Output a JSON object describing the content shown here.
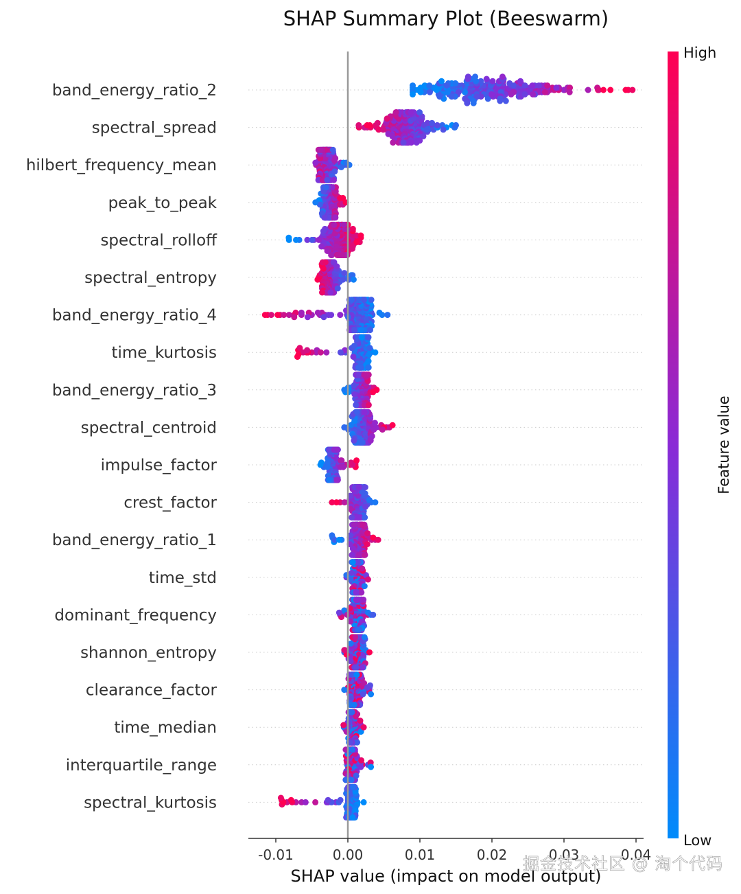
{
  "chart_data": {
    "type": "scatter",
    "subtype": "shap-beeswarm",
    "title": "SHAP Summary Plot (Beeswarm)",
    "xlabel": "SHAP value (impact on model output)",
    "ylabel": "",
    "xlim": [
      -0.014,
      0.042
    ],
    "xticks": [
      -0.01,
      0.0,
      0.01,
      0.02,
      0.03,
      0.04
    ],
    "xtick_labels": [
      "-0.01",
      "0.00",
      "0.01",
      "0.02",
      "0.03",
      "0.04"
    ],
    "zero_line": 0.0,
    "grid": false,
    "colorbar": {
      "label": "Feature value",
      "high_label": "High",
      "low_label": "Low",
      "high_color": "#ff0052",
      "mid_color": "#8a2ad6",
      "low_color": "#008bfb",
      "placement": "right"
    },
    "features": [
      {
        "name": "band_energy_ratio_2",
        "range": [
          0.009,
          0.0395
        ],
        "center": 0.019,
        "spread": 0.008,
        "trend": "low-left-high-right",
        "points": 260
      },
      {
        "name": "spectral_spread",
        "range": [
          0.0015,
          0.015
        ],
        "center": 0.008,
        "spread": 0.003,
        "trend": "high-left-low-right",
        "points": 200
      },
      {
        "name": "hilbert_frequency_mean",
        "range": [
          -0.0045,
          0.0002
        ],
        "center": -0.003,
        "spread": 0.001,
        "trend": "mixed-high-left",
        "points": 150
      },
      {
        "name": "peak_to_peak",
        "range": [
          -0.0045,
          -0.0003
        ],
        "center": -0.0025,
        "spread": 0.0009,
        "trend": "low-left-high-right",
        "points": 140
      },
      {
        "name": "spectral_rolloff",
        "range": [
          -0.0082,
          0.0018
        ],
        "center": -0.001,
        "spread": 0.002,
        "trend": "low-left-high-right",
        "points": 190
      },
      {
        "name": "spectral_entropy",
        "range": [
          -0.0042,
          0.0008
        ],
        "center": -0.0025,
        "spread": 0.001,
        "trend": "high-left-low-right",
        "points": 140
      },
      {
        "name": "band_energy_ratio_4",
        "range": [
          -0.0115,
          0.0055
        ],
        "center": 0.0015,
        "spread": 0.0015,
        "trend": "high-left-low-right",
        "points": 200
      },
      {
        "name": "time_kurtosis",
        "range": [
          -0.007,
          0.0038
        ],
        "center": 0.002,
        "spread": 0.0009,
        "trend": "high-left-low-right",
        "points": 150
      },
      {
        "name": "band_energy_ratio_3",
        "range": [
          -0.0005,
          0.004
        ],
        "center": 0.002,
        "spread": 0.0009,
        "trend": "low-left-high-right",
        "points": 150
      },
      {
        "name": "spectral_centroid",
        "range": [
          -0.0005,
          0.0062
        ],
        "center": 0.002,
        "spread": 0.0012,
        "trend": "low-left-high-right",
        "points": 170
      },
      {
        "name": "impulse_factor",
        "range": [
          -0.0038,
          0.0012
        ],
        "center": -0.002,
        "spread": 0.0008,
        "trend": "low-left-high-right",
        "points": 140
      },
      {
        "name": "crest_factor",
        "range": [
          -0.0022,
          0.0038
        ],
        "center": 0.0015,
        "spread": 0.0009,
        "trend": "high-left-low-right",
        "points": 150
      },
      {
        "name": "band_energy_ratio_1",
        "range": [
          -0.0022,
          0.0042
        ],
        "center": 0.0015,
        "spread": 0.0009,
        "trend": "low-left-high-right",
        "points": 160
      },
      {
        "name": "time_std",
        "range": [
          -0.0002,
          0.0028
        ],
        "center": 0.0013,
        "spread": 0.0007,
        "trend": "mixed",
        "points": 130
      },
      {
        "name": "dominant_frequency",
        "range": [
          -0.0012,
          0.0035
        ],
        "center": 0.0013,
        "spread": 0.0008,
        "trend": "mixed",
        "points": 150
      },
      {
        "name": "shannon_entropy",
        "range": [
          -0.0005,
          0.003
        ],
        "center": 0.0013,
        "spread": 0.0008,
        "trend": "mixed",
        "points": 150
      },
      {
        "name": "clearance_factor",
        "range": [
          -0.0005,
          0.0032
        ],
        "center": 0.001,
        "spread": 0.0007,
        "trend": "mixed",
        "points": 140
      },
      {
        "name": "time_median",
        "range": [
          -0.0006,
          0.0022
        ],
        "center": 0.0007,
        "spread": 0.0005,
        "trend": "mixed",
        "points": 120
      },
      {
        "name": "interquartile_range",
        "range": [
          -0.0003,
          0.0032
        ],
        "center": 0.0005,
        "spread": 0.0007,
        "trend": "mixed",
        "points": 130
      },
      {
        "name": "spectral_kurtosis",
        "range": [
          -0.0093,
          0.0022
        ],
        "center": 0.0005,
        "spread": 0.0006,
        "trend": "high-left-low-right",
        "points": 130
      }
    ]
  },
  "watermark": "掘金技术社区 @ 淘个代码"
}
